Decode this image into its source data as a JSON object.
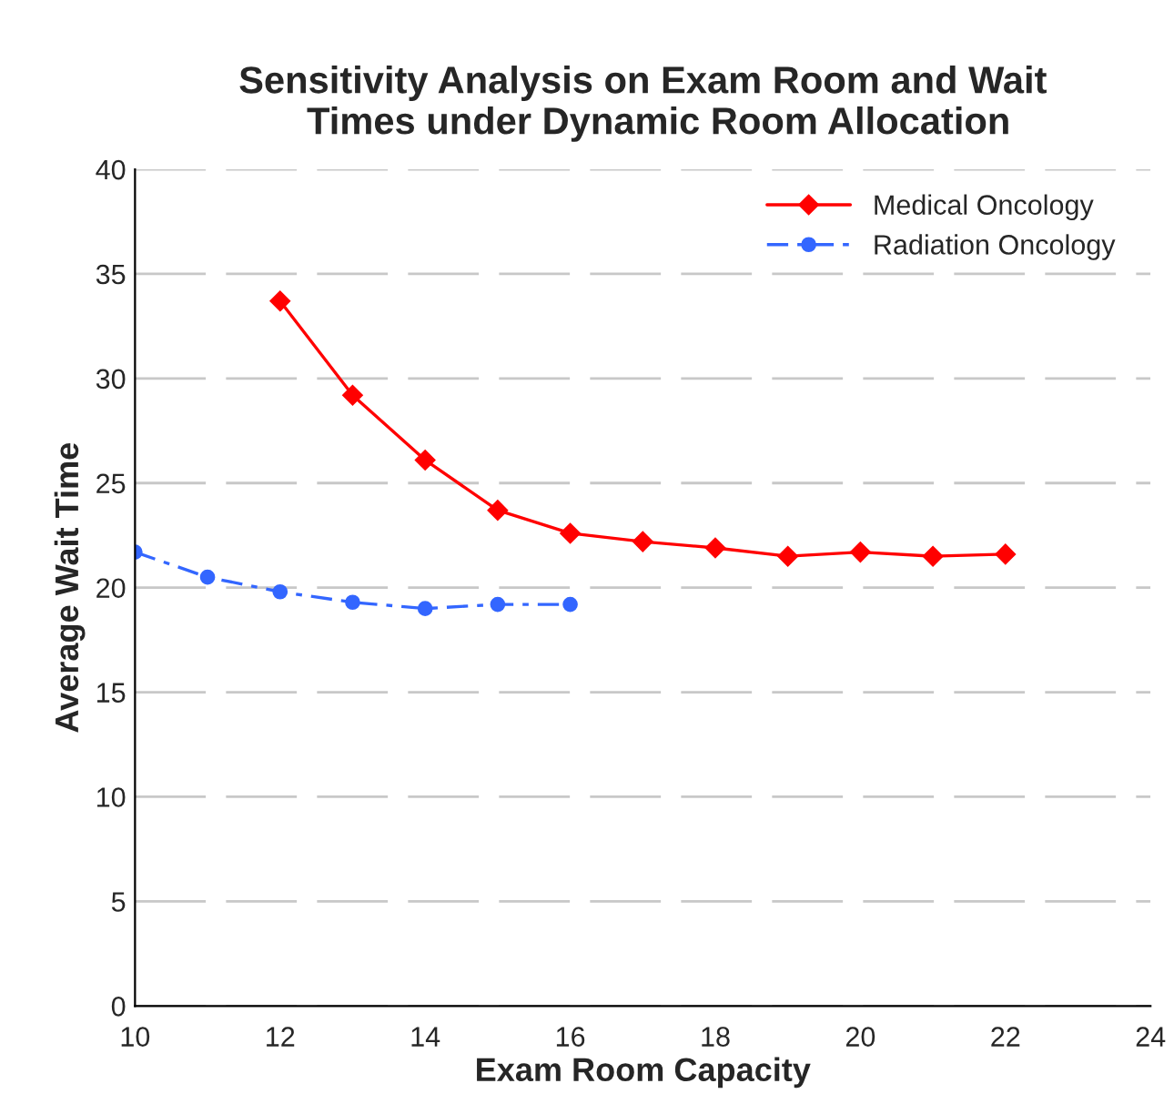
{
  "chart_data": {
    "type": "line",
    "title": "Sensitivity Analysis on Exam Room and Wait\n   Times under Dynamic Room Allocation",
    "xlabel": "Exam Room Capacity",
    "ylabel": "Average Wait Time",
    "series": [
      {
        "name": "Medical Oncology",
        "color": "#ff0000",
        "marker": "diamond",
        "line_style": "solid",
        "x": [
          12,
          13,
          14,
          15,
          16,
          17,
          18,
          19,
          20,
          21,
          22
        ],
        "values": [
          33.7,
          29.2,
          26.1,
          23.7,
          22.6,
          22.2,
          21.9,
          21.5,
          21.7,
          21.5,
          21.6
        ]
      },
      {
        "name": "Radiation Oncology",
        "color": "#3366ff",
        "marker": "circle",
        "line_style": "dashdot",
        "x": [
          10,
          11,
          12,
          13,
          14,
          15,
          16
        ],
        "values": [
          21.7,
          20.5,
          19.8,
          19.3,
          19.0,
          19.2,
          19.2
        ]
      }
    ],
    "xlim": [
      10,
      24
    ],
    "xticks": [
      10,
      12,
      14,
      16,
      18,
      20,
      22,
      24
    ],
    "ylim": [
      0,
      40
    ],
    "yticks": [
      0,
      5,
      10,
      15,
      20,
      25,
      30,
      35,
      40
    ],
    "grid": "y",
    "legend": "top right"
  }
}
